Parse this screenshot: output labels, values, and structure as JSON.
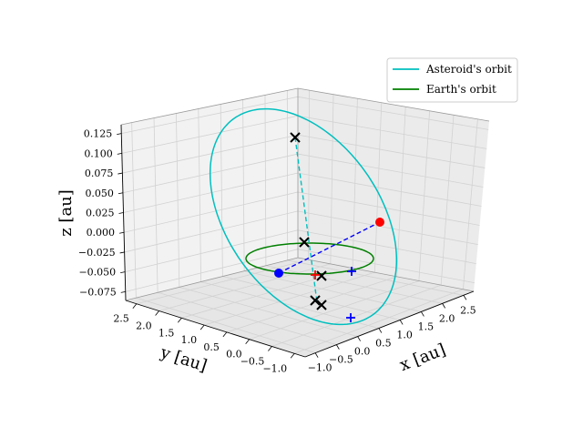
{
  "chart_data": {
    "type": "line3d",
    "title": "",
    "xlabel": "x [au]",
    "ylabel": "y [au]",
    "zlabel": "z [au]",
    "xlim": [
      -1.2,
      2.7
    ],
    "ylim": [
      -1.2,
      2.7
    ],
    "zlim": [
      -0.08,
      0.14
    ],
    "x_ticks": [
      "−1.0",
      "−0.5",
      "0.0",
      "0.5",
      "1.0",
      "1.5",
      "2.0",
      "2.5"
    ],
    "y_ticks": [
      "2.5",
      "2.0",
      "1.5",
      "1.0",
      "0.5",
      "0.0",
      "−0.5",
      "−1.0"
    ],
    "z_ticks": [
      "0.125",
      "0.100",
      "0.075",
      "0.050",
      "0.025",
      "0.000",
      "−0.025",
      "−0.050",
      "−0.075"
    ],
    "grid": true,
    "legend_position": "top-right",
    "colors": {
      "asteroid_orbit": "#00bfbf",
      "earth_orbit": "#008000",
      "perihelion_line": "#0000ff",
      "nodes_line": "#00bfbf",
      "marker_black": "#000000",
      "marker_red": "#ff0000",
      "marker_blue": "#0000ff"
    },
    "series": [
      {
        "name": "Asteroid's orbit",
        "kind": "ellipse-orbit"
      },
      {
        "name": "Earth's orbit",
        "kind": "circle-orbit"
      }
    ],
    "markers": [
      {
        "kind": "dot",
        "color": "red",
        "x": 2.3,
        "y": 0.5,
        "z": 0.06
      },
      {
        "kind": "dot",
        "color": "blue",
        "x": -0.95,
        "y": 0.25,
        "z": -0.02
      },
      {
        "kind": "cross",
        "color": "black",
        "x": -0.1,
        "y": 2.2,
        "z": 0.138
      },
      {
        "kind": "cross",
        "color": "black",
        "x": 0.0,
        "y": 0.0,
        "z": 0.0
      },
      {
        "kind": "cross",
        "color": "black",
        "x": 0.25,
        "y": -0.2,
        "z": -0.03
      },
      {
        "kind": "cross",
        "color": "black",
        "x": 0.2,
        "y": -0.95,
        "z": -0.06
      },
      {
        "kind": "cross",
        "color": "black",
        "x": 0.35,
        "y": -1.0,
        "z": -0.065
      },
      {
        "kind": "plus",
        "color": "red",
        "x": 0.1,
        "y": -0.15,
        "z": -0.03
      },
      {
        "kind": "plus",
        "color": "blue",
        "x": 1.0,
        "y": 0.15,
        "z": -0.015
      },
      {
        "kind": "plus",
        "color": "blue",
        "x": 0.95,
        "y": -1.35,
        "z": -0.075
      }
    ]
  }
}
